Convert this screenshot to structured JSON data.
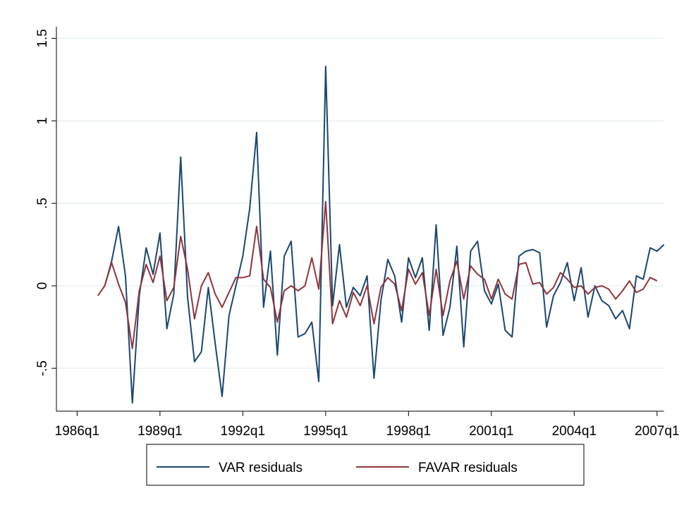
{
  "chart_data": {
    "type": "line",
    "x": [
      "1986q4",
      "1987q1",
      "1987q2",
      "1987q3",
      "1987q4",
      "1988q1",
      "1988q2",
      "1988q3",
      "1988q4",
      "1989q1",
      "1989q2",
      "1989q3",
      "1989q4",
      "1990q1",
      "1990q2",
      "1990q3",
      "1990q4",
      "1991q1",
      "1991q2",
      "1991q3",
      "1991q4",
      "1992q1",
      "1992q2",
      "1992q3",
      "1992q4",
      "1993q1",
      "1993q2",
      "1993q3",
      "1993q4",
      "1994q1",
      "1994q2",
      "1994q3",
      "1994q4",
      "1995q1",
      "1995q2",
      "1995q3",
      "1995q4",
      "1996q1",
      "1996q2",
      "1996q3",
      "1996q4",
      "1997q1",
      "1997q2",
      "1997q3",
      "1997q4",
      "1998q1",
      "1998q2",
      "1998q3",
      "1998q4",
      "1999q1",
      "1999q2",
      "1999q3",
      "1999q4",
      "2000q1",
      "2000q2",
      "2000q3",
      "2000q4",
      "2001q1",
      "2001q2",
      "2001q3",
      "2001q4",
      "2002q1",
      "2002q2",
      "2002q3",
      "2002q4",
      "2003q1",
      "2003q2",
      "2003q3",
      "2003q4",
      "2004q1",
      "2004q2",
      "2004q3",
      "2004q4",
      "2005q1",
      "2005q2",
      "2005q3",
      "2005q4",
      "2006q1",
      "2006q2",
      "2006q3",
      "2006q4",
      "2007q1",
      "2007q2"
    ],
    "series": [
      {
        "name": "VAR residuals",
        "color": "#1a476f",
        "values": [
          null,
          0,
          0.15,
          0.36,
          0.06,
          -0.71,
          -0.06,
          0.23,
          0.07,
          0.32,
          -0.26,
          -0.05,
          0.78,
          -0.07,
          -0.46,
          -0.4,
          -0.01,
          -0.35,
          -0.67,
          -0.18,
          0,
          0.18,
          0.47,
          0.93,
          -0.13,
          0.21,
          -0.42,
          0.18,
          0.27,
          -0.31,
          -0.29,
          -0.22,
          -0.58,
          1.33,
          -0.12,
          0.25,
          -0.13,
          -0.01,
          -0.06,
          0.06,
          -0.56,
          -0.09,
          0.16,
          0.06,
          -0.22,
          0.17,
          0.05,
          0.17,
          -0.27,
          0.37,
          -0.3,
          -0.13,
          0.24,
          -0.37,
          0.21,
          0.27,
          -0.03,
          -0.11,
          0.01,
          -0.27,
          -0.31,
          0.18,
          0.21,
          0.22,
          0.2,
          -0.25,
          -0.06,
          0.02,
          0.14,
          -0.09,
          0.11,
          -0.19,
          0,
          -0.09,
          -0.12,
          -0.2,
          -0.15,
          -0.26,
          0.06,
          0.04,
          0.23,
          0.21,
          0.25
        ]
      },
      {
        "name": "FAVAR residuals",
        "color": "#90353b",
        "values": [
          -0.06,
          0,
          0.14,
          0.01,
          -0.1,
          -0.38,
          -0.03,
          0.13,
          0.02,
          0.18,
          -0.09,
          -0.01,
          0.3,
          0.1,
          -0.2,
          0,
          0.08,
          -0.05,
          -0.13,
          -0.04,
          0.05,
          0.05,
          0.06,
          0.36,
          0.04,
          -0.01,
          -0.22,
          -0.03,
          0,
          -0.03,
          0,
          0.17,
          -0.02,
          0.51,
          -0.23,
          -0.09,
          -0.19,
          -0.04,
          -0.12,
          0,
          -0.23,
          -0.01,
          0.05,
          0.01,
          -0.15,
          0.1,
          0.01,
          0.08,
          -0.18,
          0.1,
          -0.18,
          0.03,
          0.15,
          -0.08,
          0.12,
          0.07,
          0.04,
          -0.08,
          0.04,
          -0.05,
          -0.08,
          0.13,
          0.14,
          0.01,
          0.02,
          -0.05,
          -0.01,
          0.08,
          0.04,
          -0.01,
          0,
          -0.05,
          -0.01,
          0,
          -0.02,
          -0.08,
          -0.03,
          0.03,
          -0.04,
          -0.02,
          0.05,
          0.03,
          null
        ]
      }
    ],
    "xlim": [
      "1985q2",
      "2007q2"
    ],
    "xticks": [
      "1986q1",
      "1989q1",
      "1992q1",
      "1995q1",
      "1998q1",
      "2001q1",
      "2004q1",
      "2007q1"
    ],
    "ylim": [
      -0.76,
      1.57
    ],
    "yticks": [
      {
        "value": -0.5,
        "label": "-.5"
      },
      0,
      {
        "value": 0.5,
        "label": ".5"
      },
      1,
      1.5
    ],
    "grid": true,
    "legend": "bottom"
  }
}
